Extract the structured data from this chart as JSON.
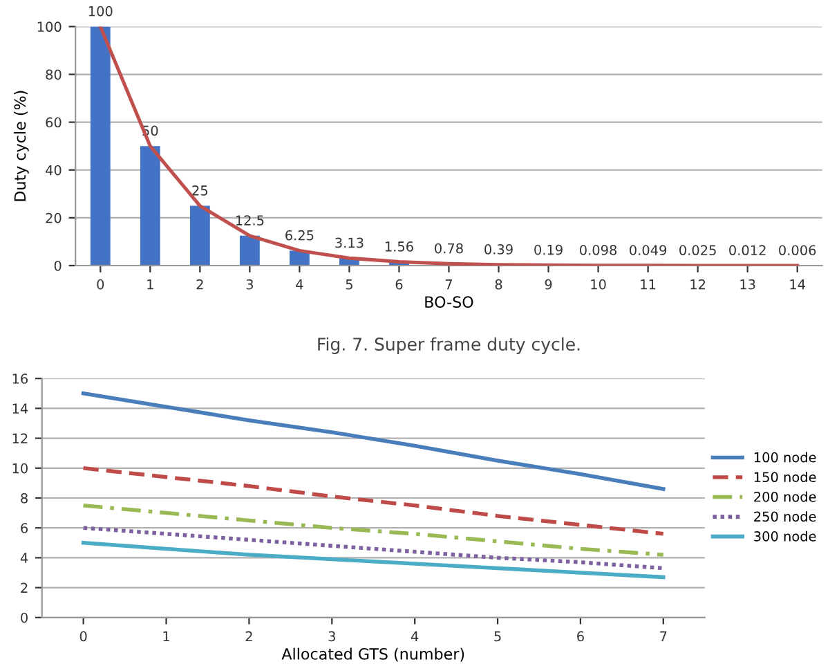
{
  "chart_data": [
    {
      "type": "bar",
      "title": "Fig. 7. Super frame duty cycle.",
      "xlabel": "BO-SO",
      "ylabel": "Duty cycle (%)",
      "categories": [
        "0",
        "1",
        "2",
        "3",
        "4",
        "5",
        "6",
        "7",
        "8",
        "9",
        "10",
        "11",
        "12",
        "13",
        "14"
      ],
      "series": [
        {
          "type": "bar",
          "color": "#4472c4",
          "values": [
            100,
            50,
            25,
            12.5,
            6.25,
            3.13,
            1.56,
            0.78,
            0.39,
            0.19,
            0.098,
            0.049,
            0.025,
            0.012,
            0.006
          ],
          "value_labels": [
            "100",
            "50",
            "25",
            "12.5",
            "6.25",
            "3.13",
            "1.56",
            "0.78",
            "0.39",
            "0.19",
            "0.098",
            "0.049",
            "0.025",
            "0.012",
            "0.006"
          ]
        },
        {
          "type": "line",
          "color": "#c0504d",
          "values": [
            100,
            50,
            25,
            12.5,
            6.25,
            3.13,
            1.56,
            0.78,
            0.39,
            0.19,
            0.098,
            0.049,
            0.025,
            0.012,
            0.006
          ]
        }
      ],
      "ylim": [
        0,
        100
      ],
      "yticks": [
        0,
        20,
        40,
        60,
        80,
        100
      ],
      "grid": "y",
      "legend": false
    },
    {
      "type": "line",
      "xlabel": "Allocated GTS (number)",
      "x": [
        0,
        1,
        2,
        3,
        4,
        5,
        6,
        7
      ],
      "series": [
        {
          "name": "100 node",
          "color": "#4a7ebb",
          "line_style": "solid",
          "values": [
            15,
            14.1,
            13.2,
            12.4,
            11.5,
            10.5,
            9.6,
            8.6
          ]
        },
        {
          "name": "150 node",
          "color": "#be4b48",
          "line_style": "dashed",
          "values": [
            10,
            9.4,
            8.8,
            8.1,
            7.5,
            6.8,
            6.2,
            5.6
          ]
        },
        {
          "name": "200 node",
          "color": "#98b954",
          "line_style": "dashdot",
          "values": [
            7.5,
            7.0,
            6.5,
            6.0,
            5.6,
            5.1,
            4.6,
            4.2
          ]
        },
        {
          "name": "250 node",
          "color": "#7d60a0",
          "line_style": "dotted",
          "values": [
            6,
            5.6,
            5.2,
            4.8,
            4.4,
            4.0,
            3.7,
            3.3
          ]
        },
        {
          "name": "300 node",
          "color": "#4bacc6",
          "line_style": "solid",
          "values": [
            5,
            4.6,
            4.2,
            3.9,
            3.6,
            3.3,
            3.0,
            2.7
          ]
        }
      ],
      "xlim": [
        -0.5,
        7.5
      ],
      "xticks": [
        0,
        1,
        2,
        3,
        4,
        5,
        6,
        7
      ],
      "ylim": [
        0,
        16
      ],
      "yticks": [
        0,
        2,
        4,
        6,
        8,
        10,
        12,
        14,
        16
      ],
      "grid": "y",
      "legend": "right",
      "marker": "none"
    }
  ]
}
